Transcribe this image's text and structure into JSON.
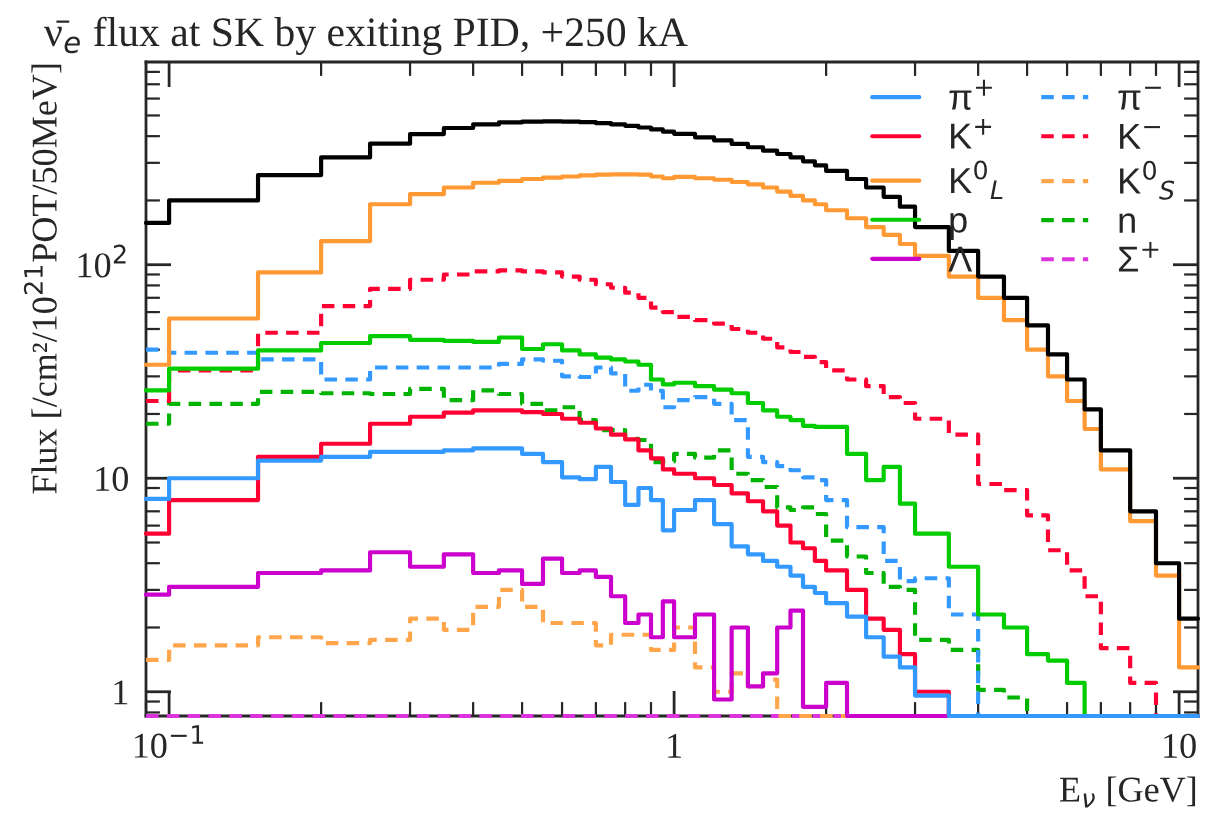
{
  "chart_data": {
    "type": "histogram",
    "title": "ν̄$_{e}$ flux at SK by exiting PID, +250 kA",
    "xlabel": "E$_{ν}$ [GeV]",
    "ylabel": "Flux [/cm²/10$^{21}$POT/50MeV]",
    "log": "xy",
    "xlim": [
      0.09,
      10.9
    ],
    "ylim": [
      0.77,
      890
    ],
    "xticks": [
      {
        "value": 0.1,
        "label": "10$^{−1}$"
      },
      1,
      10
    ],
    "yticks": [
      1,
      10,
      {
        "value": 100,
        "label": "10$^{2}$"
      }
    ],
    "legend": "top right",
    "bins": [
      0.09,
      0.1,
      0.15,
      0.2,
      0.25,
      0.3,
      0.35,
      0.4,
      0.45,
      0.5,
      0.55,
      0.6,
      0.65,
      0.7,
      0.75,
      0.8,
      0.85,
      0.9,
      0.95,
      1.0,
      1.1,
      1.2,
      1.3,
      1.4,
      1.5,
      1.6,
      1.7,
      1.8,
      1.9,
      2.0,
      2.2,
      2.4,
      2.6,
      2.8,
      3.0,
      3.5,
      4.0,
      4.5,
      5.0,
      5.5,
      6.0,
      6.5,
      7.0,
      8.0,
      9.0,
      10.0,
      10.9
    ],
    "series": [
      {
        "color": "#000000",
        "line_style": "solid",
        "values": [
          157,
          200,
          263,
          318,
          369,
          409,
          437,
          454,
          464,
          468,
          469,
          468,
          465,
          460,
          454,
          447,
          439,
          430,
          420,
          410,
          395,
          382,
          368,
          355,
          342,
          330,
          318,
          305,
          292,
          275,
          252,
          230,
          208,
          187,
          150,
          116,
          88,
          70,
          52,
          38,
          29,
          21,
          13.5,
          7.0,
          4.0,
          2.2
        ]
      },
      {
        "name": "π$^{+}$",
        "color": "#3399ff",
        "line_style": "solid",
        "values": [
          8.0,
          10,
          12.1,
          12.6,
          13.3,
          13.3,
          13.5,
          13.8,
          13.8,
          13.0,
          11.9,
          10.1,
          9.9,
          11.3,
          9.6,
          7.5,
          9.0,
          7.9,
          5.7,
          7.1,
          7.9,
          6.1,
          4.8,
          4.4,
          4.1,
          3.85,
          3.5,
          3.1,
          2.9,
          2.6,
          2.25,
          1.8,
          1.46,
          1.3,
          0.96,
          null,
          null,
          null,
          null,
          null,
          null,
          null,
          null,
          null,
          null,
          null
        ]
      },
      {
        "name": "K$^{+}$",
        "color": "#ff0033",
        "line_style": "solid",
        "values": [
          5.5,
          7.9,
          12.6,
          14.5,
          18,
          19.4,
          20.3,
          20.8,
          20.8,
          20.4,
          20,
          19,
          18.2,
          17.1,
          16,
          15.2,
          13.5,
          12.4,
          11,
          10.5,
          10,
          9.3,
          8.5,
          7.8,
          7.0,
          6.0,
          5.0,
          4.7,
          4.1,
          3.7,
          3.0,
          2.2,
          1.95,
          1.5,
          1.0,
          null,
          null,
          null,
          null,
          null,
          null,
          null,
          null,
          null,
          null,
          null
        ]
      },
      {
        "name": "K$^{0}$$_{L}$",
        "color": "#ff9933",
        "line_style": "solid",
        "values": [
          34,
          56,
          92,
          129,
          192,
          214,
          230,
          242,
          247,
          252,
          256,
          259,
          262,
          264,
          265,
          265,
          264,
          259,
          254,
          258,
          254,
          250,
          244,
          238,
          230,
          220,
          210,
          200,
          192,
          180,
          165,
          150,
          138,
          125,
          110,
          88,
          70,
          55,
          40,
          30,
          23,
          17,
          11,
          6.3,
          3.5,
          1.3
        ]
      },
      {
        "name": "p",
        "color": "#00cc00",
        "line_style": "solid",
        "values": [
          25.8,
          32.6,
          39.7,
          43,
          46.3,
          44.5,
          44,
          43.5,
          45.6,
          40.3,
          42.4,
          39.7,
          38,
          36.7,
          36,
          35.2,
          34,
          29,
          27.5,
          28,
          27,
          26,
          25,
          22.5,
          20.8,
          19.4,
          18.7,
          17.6,
          17.4,
          17.4,
          13,
          9.8,
          11.3,
          7.6,
          5.5,
          3.85,
          2.3,
          2.0,
          1.5,
          1.4,
          1.1,
          null,
          null,
          null,
          null,
          null
        ]
      },
      {
        "name": "Λ",
        "color": "#cc00cc",
        "line_style": "solid",
        "values": [
          2.85,
          3.1,
          3.6,
          3.7,
          4.5,
          3.85,
          4.4,
          3.6,
          3.7,
          3.2,
          4.2,
          3.6,
          3.7,
          3.45,
          2.8,
          2.1,
          2.3,
          1.8,
          2.65,
          1.8,
          2.3,
          0.92,
          2.0,
          1.06,
          1.22,
          2.0,
          2.4,
          0.85,
          0.85,
          1.1,
          null,
          null,
          null,
          null,
          null,
          null,
          null,
          null,
          null,
          null,
          null,
          null,
          null,
          null,
          null,
          null
        ]
      },
      {
        "name": "π$^{−}$",
        "color": "#3399ff",
        "line_style": "dashed",
        "values": [
          40,
          38.7,
          36,
          29,
          33,
          33,
          33,
          33,
          34.3,
          36,
          35.5,
          30,
          29.8,
          33,
          31,
          25.7,
          27.4,
          25.7,
          21.5,
          23.2,
          24,
          22.3,
          18.7,
          12.6,
          11.9,
          11.4,
          10.9,
          10.1,
          9.8,
          7.9,
          5.9,
          5.9,
          4.1,
          3.3,
          3.4,
          2.3,
          null,
          null,
          null,
          null,
          null,
          null,
          null,
          null,
          null,
          null
        ]
      },
      {
        "name": "K$^{−}$",
        "color": "#ff0033",
        "line_style": "dashed",
        "values": [
          23,
          32,
          48,
          64,
          77,
          85,
          90,
          93,
          94,
          93,
          92,
          88,
          85,
          81,
          78,
          74,
          70,
          63,
          60,
          57,
          55,
          53,
          50,
          48,
          45,
          41,
          39,
          37,
          35,
          32,
          29,
          27,
          24,
          22.5,
          19,
          16,
          9.4,
          8.8,
          6.7,
          4.6,
          3.7,
          2.8,
          1.6,
          1.1,
          null,
          null
        ]
      },
      {
        "name": "K$^{0}$$_{S}$",
        "color": "#ffa64d",
        "line_style": "dashed",
        "values": [
          1.41,
          1.65,
          1.8,
          1.69,
          1.75,
          2.2,
          1.95,
          2.5,
          3.0,
          2.5,
          2.1,
          2.1,
          2.1,
          1.65,
          1.85,
          1.85,
          1.85,
          1.57,
          1.57,
          2.0,
          1.3,
          1.0,
          1.22,
          1.06,
          1.14,
          null,
          null,
          null,
          null,
          null,
          null,
          null,
          null,
          null,
          null,
          null,
          null,
          null,
          null,
          null,
          null,
          null,
          null,
          null,
          null,
          null
        ]
      },
      {
        "name": "n",
        "color": "#00b300",
        "line_style": "dashed",
        "values": [
          18,
          22.3,
          25.4,
          25,
          24.8,
          26.2,
          23.2,
          25.8,
          24.8,
          22.3,
          20.8,
          21.5,
          18.7,
          16.8,
          16.8,
          15.3,
          15.1,
          11.9,
          12,
          13,
          12.5,
          13.5,
          10.5,
          9.8,
          9.1,
          7.3,
          7.1,
          7.3,
          6.8,
          5.1,
          4.3,
          3.6,
          3.1,
          3.0,
          1.75,
          1.57,
          1.02,
          0.94,
          null,
          null,
          null,
          null,
          null,
          null,
          null,
          null
        ]
      },
      {
        "name": "Σ$^{+}$",
        "color": "#dd33dd",
        "line_style": "dashed",
        "values": [
          null,
          null,
          null,
          null,
          null,
          null,
          null,
          null,
          null,
          null,
          null,
          null,
          null,
          null,
          null,
          null,
          null,
          null,
          null,
          null,
          null,
          null,
          null,
          null,
          null,
          null,
          null,
          null,
          null,
          null,
          null,
          null,
          null,
          null,
          null,
          null,
          null,
          null,
          null,
          null,
          null,
          null,
          null,
          null,
          null,
          null
        ]
      }
    ]
  }
}
